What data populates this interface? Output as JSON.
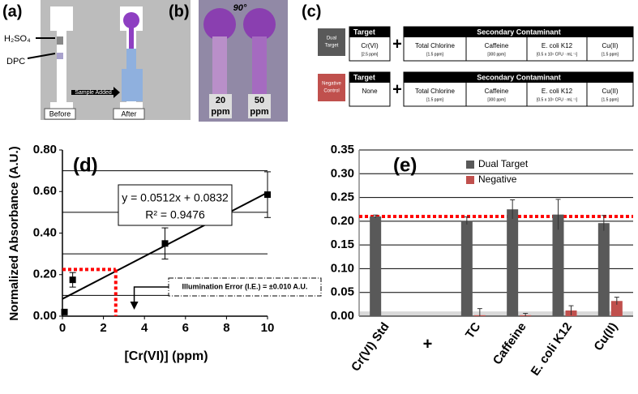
{
  "panel_labels": [
    "(a)",
    "(b)",
    "(c)"
  ],
  "panel_a": {
    "reagents": [
      "H₂SO₄",
      "DPC"
    ],
    "arrow_label": "Sample Added",
    "captions": [
      "Before",
      "After"
    ]
  },
  "panel_b": {
    "angle": "90°",
    "captions": [
      [
        "20",
        "ppm"
      ],
      [
        "50",
        "ppm"
      ]
    ]
  },
  "panel_c": {
    "rows": [
      {
        "badge": [
          "Dual",
          "Target"
        ],
        "target_header": "Target",
        "target": "Cr(VI)",
        "target_conc": "[2.5 ppm]",
        "plus": "+",
        "secondary_header": "Secondary Contaminant",
        "contaminants": [
          {
            "name": "Total Chlorine",
            "conc": "[1.5 ppm]"
          },
          {
            "name": "Caffeine",
            "conc": "[300 ppm]"
          },
          {
            "name": "E. coli K12",
            "conc": "[0.5 x 10⁵ CFU · mL⁻¹]"
          },
          {
            "name": "Cu(II)",
            "conc": "[1.5 ppm]"
          }
        ]
      },
      {
        "badge": [
          "Negative",
          "Control"
        ],
        "target_header": "Target",
        "target": "None",
        "plus": "+",
        "secondary_header": "Secondary Contaminant",
        "contaminants": [
          {
            "name": "Total Chlorine",
            "conc": "[1.5 ppm]"
          },
          {
            "name": "Caffeine",
            "conc": "[300 ppm]"
          },
          {
            "name": "E. coli K12",
            "conc": "[0.5 x 10⁵ CFU · mL⁻¹]"
          },
          {
            "name": "Cu(II)",
            "conc": "[1.5 ppm]"
          }
        ]
      }
    ]
  },
  "chart_data": [
    {
      "type": "scatter",
      "label": "(d)",
      "xlabel": "[Cr(VI)] (ppm)",
      "ylabel": "Normalized Absorbance (A.U.)",
      "x": [
        0.1,
        0.5,
        5,
        10
      ],
      "values": [
        0.02,
        0.175,
        0.35,
        0.585
      ],
      "errors": [
        null,
        0.035,
        0.075,
        0.11
      ],
      "color": "#000000",
      "xlim": [
        0,
        10
      ],
      "xticks": [
        0,
        2,
        4,
        6,
        8,
        10
      ],
      "ylim": [
        0,
        0.8
      ],
      "yticks": [
        {
          "value": 0,
          "label": "0.00"
        },
        {
          "value": 0.2,
          "label": "0.20"
        },
        {
          "value": 0.4,
          "label": "0.40"
        },
        {
          "value": 0.6,
          "label": "0.60"
        },
        {
          "value": 0.8,
          "label": "0.80"
        }
      ],
      "grid_y": [
        0.1,
        0.3,
        0.5,
        0.7
      ],
      "fit_equation": "y = 0.0512x + 0.0832",
      "r_squared": "R² = 0.9476",
      "threshold": {
        "y": 0.225,
        "x": 2.6,
        "color": "#ff0000"
      },
      "annotation": {
        "text": "Illumination Error (I.E.) = ±0.010 A.U.",
        "x": 3.5
      }
    },
    {
      "type": "bar",
      "label": "(e)",
      "categories": [
        "Cr(VI) Std",
        "+",
        "TC",
        "Caffeine",
        "E. coli K12",
        "Cu(II)"
      ],
      "series": [
        {
          "name": "Dual Target",
          "color": "#595959",
          "values": [
            0.21,
            null,
            0.201,
            0.225,
            0.214,
            0.196
          ],
          "errors": [
            0.003,
            null,
            0.008,
            0.02,
            0.032,
            0.016
          ]
        },
        {
          "name": "Negative",
          "color": "#c0504d",
          "values": [
            null,
            null,
            0.002,
            0.002,
            0.012,
            0.032
          ],
          "errors": [
            null,
            null,
            0.014,
            0.004,
            0.01,
            0.008
          ]
        }
      ],
      "ylim": [
        0,
        0.35
      ],
      "yticks": [
        {
          "value": 0,
          "label": "0.00"
        },
        {
          "value": 0.05,
          "label": "0.05"
        },
        {
          "value": 0.1,
          "label": "0.10"
        },
        {
          "value": 0.15,
          "label": "0.15"
        },
        {
          "value": 0.2,
          "label": "0.20"
        },
        {
          "value": 0.25,
          "label": "0.25"
        },
        {
          "value": 0.3,
          "label": "0.30"
        },
        {
          "value": 0.35,
          "label": "0.35"
        }
      ],
      "grid": true,
      "reference_line": {
        "value": 0.21,
        "color": "#ff0000"
      },
      "noise_band": [
        0,
        0.01
      ],
      "legend": "upper center"
    }
  ]
}
